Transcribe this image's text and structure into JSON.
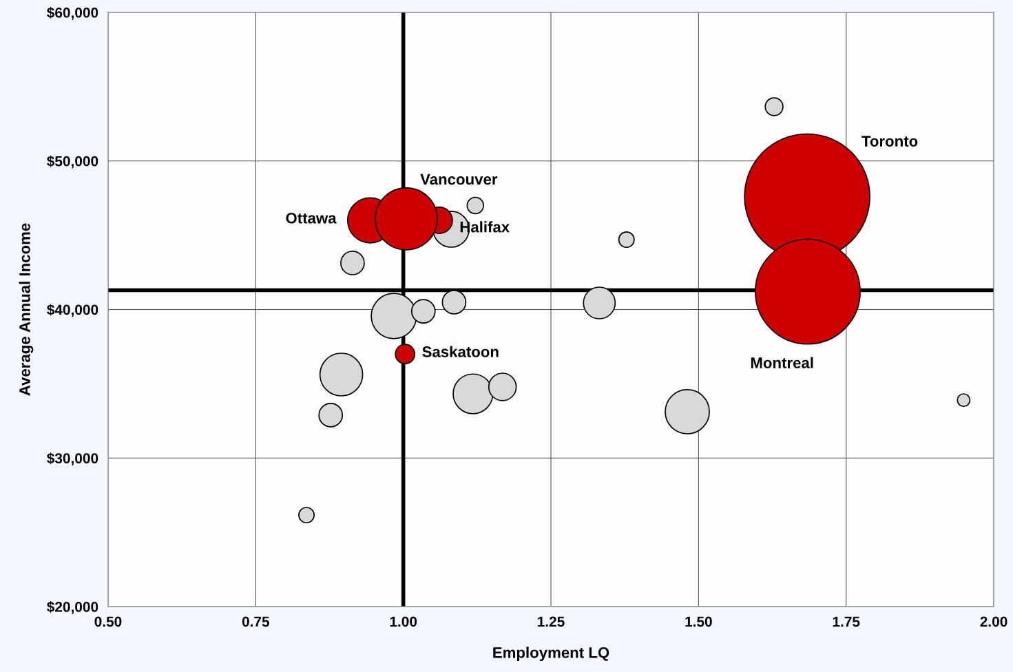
{
  "chart_data": {
    "type": "bubble",
    "xlabel": "Employment LQ",
    "ylabel": "Average Annual Income",
    "xlim": [
      0.5,
      2.0
    ],
    "ylim": [
      20000,
      60000
    ],
    "xticks": [
      {
        "value": 0.5,
        "label": "0.50"
      },
      {
        "value": 0.75,
        "label": "0.75"
      },
      {
        "value": 1.0,
        "label": "1.00"
      },
      {
        "value": 1.25,
        "label": "1.25"
      },
      {
        "value": 1.5,
        "label": "1.50"
      },
      {
        "value": 1.75,
        "label": "1.75"
      },
      {
        "value": 2.0,
        "label": "2.00"
      }
    ],
    "yticks": [
      {
        "value": 20000,
        "label": "$20,000"
      },
      {
        "value": 30000,
        "label": "$30,000"
      },
      {
        "value": 40000,
        "label": "$40,000"
      },
      {
        "value": 50000,
        "label": "$50,000"
      },
      {
        "value": 60000,
        "label": "$60,000"
      }
    ],
    "grid": true,
    "series": [
      {
        "color": "#d9d9d9",
        "x": [
          1.628,
          1.122,
          1.081,
          1.378,
          0.914,
          0.984,
          1.034,
          1.086,
          1.332,
          0.895,
          0.877,
          1.118,
          1.168,
          1.481,
          1.949,
          0.836
        ],
        "values": [
          53650,
          47000,
          45400,
          44700,
          43130,
          39560,
          39880,
          40490,
          40440,
          35620,
          32890,
          34320,
          34790,
          33120,
          33900,
          26160
        ],
        "sizes": [
          0.02,
          0.017,
          0.082,
          0.015,
          0.035,
          0.13,
          0.035,
          0.035,
          0.064,
          0.116,
          0.035,
          0.1,
          0.048,
          0.124,
          0.01,
          0.015
        ]
      },
      {
        "color": "#cc0000",
        "x": [
          1.684,
          1.685,
          0.944,
          1.061,
          1.005,
          1.003
        ],
        "values": [
          47600,
          41200,
          46000,
          46000,
          46100,
          37000
        ],
        "sizes": [
          1.0,
          0.7,
          0.13,
          0.044,
          0.245,
          0.024
        ]
      }
    ],
    "ref_lines": [
      {
        "axis": "x",
        "value": 1.0,
        "color": "#000000"
      },
      {
        "axis": "y",
        "value": 41300,
        "color": "#000000"
      }
    ],
    "annotations": [
      "Toronto",
      "Montreal",
      {
        "text": "Ottawa",
        "x": 0.944,
        "y": 46000
      },
      {
        "text": "Halifax",
        "x": 1.081,
        "y": 45400
      },
      {
        "text": "Vancouver",
        "x": 1.005,
        "y": 46100
      },
      {
        "text": "Saskatoon",
        "x": 1.003,
        "y": 37000
      }
    ]
  }
}
